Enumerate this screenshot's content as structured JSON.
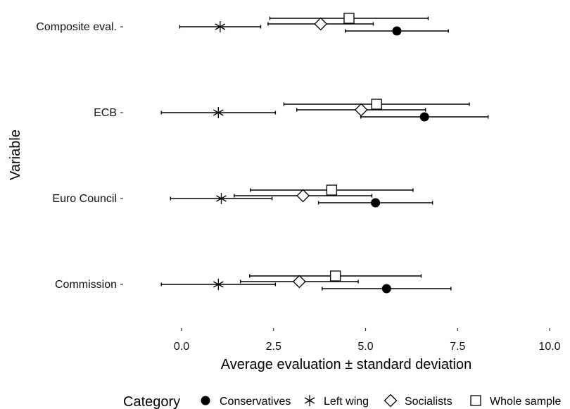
{
  "chart_data": {
    "type": "scatter",
    "chart_subtype": "dot plot with horizontal error bars",
    "title": "",
    "xlabel": "Average evaluation ± standard deviation",
    "ylabel": "Variable",
    "xlim": [
      -0.6,
      10.3
    ],
    "xticks": [
      "0.0",
      "2.5",
      "5.0",
      "7.5",
      "10.0"
    ],
    "categories": [
      "Composite eval.",
      "ECB",
      "Euro Council",
      "Commission"
    ],
    "legend": {
      "title": "Category",
      "position": "bottom"
    },
    "series": [
      {
        "name": "Conservatives",
        "marker": "filled-circle",
        "values": [
          5.85,
          6.6,
          5.27,
          5.57
        ],
        "lower": [
          4.45,
          4.87,
          3.72,
          3.82
        ],
        "upper": [
          7.25,
          8.33,
          6.82,
          7.32
        ]
      },
      {
        "name": "Left wing",
        "marker": "asterisk",
        "values": [
          1.05,
          1.0,
          1.08,
          1.0
        ],
        "lower": [
          -0.05,
          -0.55,
          -0.3,
          -0.55
        ],
        "upper": [
          2.15,
          2.55,
          2.46,
          2.55
        ]
      },
      {
        "name": "Socialists",
        "marker": "open-diamond",
        "values": [
          3.78,
          4.88,
          3.3,
          3.2
        ],
        "lower": [
          2.35,
          3.13,
          1.43,
          1.6
        ],
        "upper": [
          5.21,
          6.63,
          5.17,
          4.8
        ]
      },
      {
        "name": "Whole sample",
        "marker": "open-square",
        "values": [
          4.55,
          5.3,
          4.08,
          4.18
        ],
        "lower": [
          2.4,
          2.78,
          1.87,
          1.85
        ],
        "upper": [
          6.7,
          7.82,
          6.29,
          6.51
        ]
      }
    ]
  }
}
